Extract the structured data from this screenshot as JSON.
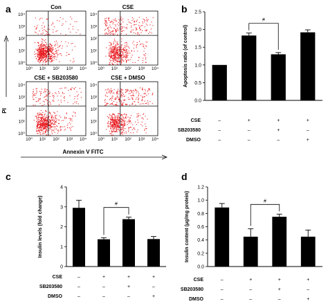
{
  "panels": {
    "a": {
      "letter": "a",
      "titles": [
        "Con",
        "CSE",
        "CSE + SB203580",
        "CSE + DMSO"
      ],
      "y_axis_label": "PI",
      "x_axis_label": "Annexin V FITC",
      "tick_labels": [
        "10⁰",
        "10¹",
        "10²",
        "10³",
        "10⁴"
      ],
      "dot_color": "#e8181d"
    },
    "b": {
      "letter": "b"
    },
    "c": {
      "letter": "c"
    },
    "d": {
      "letter": "d"
    }
  },
  "chart_data": [
    {
      "id": "b",
      "type": "bar",
      "ylabel": "Apoptosis ratio (of control)",
      "ylim": [
        0,
        2.5
      ],
      "yticks": [
        "0.0",
        "0.5",
        "1.0",
        "1.5",
        "2.0",
        "2.5"
      ],
      "values": [
        1.0,
        1.83,
        1.3,
        1.92
      ],
      "errors": [
        0,
        0.07,
        0.05,
        0.07
      ],
      "significance": "#",
      "significance_pair": [
        1,
        2
      ],
      "conditions": [
        {
          "label": "CSE",
          "marks": [
            "–",
            "+",
            "+",
            "+"
          ]
        },
        {
          "label": "SB203580",
          "marks": [
            "–",
            "–",
            "+",
            "–"
          ]
        },
        {
          "label": "DMSO",
          "marks": [
            "–",
            "–",
            "–",
            "+"
          ]
        }
      ]
    },
    {
      "id": "c",
      "type": "bar",
      "ylabel": "Insulin levels (fold change)",
      "ylim": [
        0,
        4
      ],
      "yticks": [
        "0",
        "1",
        "2",
        "3",
        "4"
      ],
      "values": [
        2.95,
        1.37,
        2.38,
        1.38
      ],
      "errors": [
        0.38,
        0.08,
        0.1,
        0.13
      ],
      "significance": "#",
      "significance_pair": [
        1,
        2
      ],
      "conditions": [
        {
          "label": "CSE",
          "marks": [
            "–",
            "+",
            "+",
            "+"
          ]
        },
        {
          "label": "SB203580",
          "marks": [
            "–",
            "–",
            "+",
            "–"
          ]
        },
        {
          "label": "DMSO",
          "marks": [
            "–",
            "–",
            "–",
            "+"
          ]
        }
      ]
    },
    {
      "id": "d",
      "type": "bar",
      "ylabel": "Insulin content (μg/mg protein)",
      "ylim": [
        0,
        1.2
      ],
      "yticks": [
        "0.0",
        "0.2",
        "0.4",
        "0.6",
        "0.8",
        "1.0",
        "1.2"
      ],
      "values": [
        0.89,
        0.45,
        0.75,
        0.45
      ],
      "errors": [
        0.06,
        0.12,
        0.04,
        0.1
      ],
      "significance": "#",
      "significance_pair": [
        1,
        2
      ],
      "conditions": [
        {
          "label": "CSE",
          "marks": [
            "–",
            "+",
            "+",
            "+"
          ]
        },
        {
          "label": "SB203580",
          "marks": [
            "–",
            "–",
            "+",
            "–"
          ]
        },
        {
          "label": "DMSO",
          "marks": [
            "–",
            "–",
            "–",
            "+"
          ]
        }
      ]
    }
  ]
}
